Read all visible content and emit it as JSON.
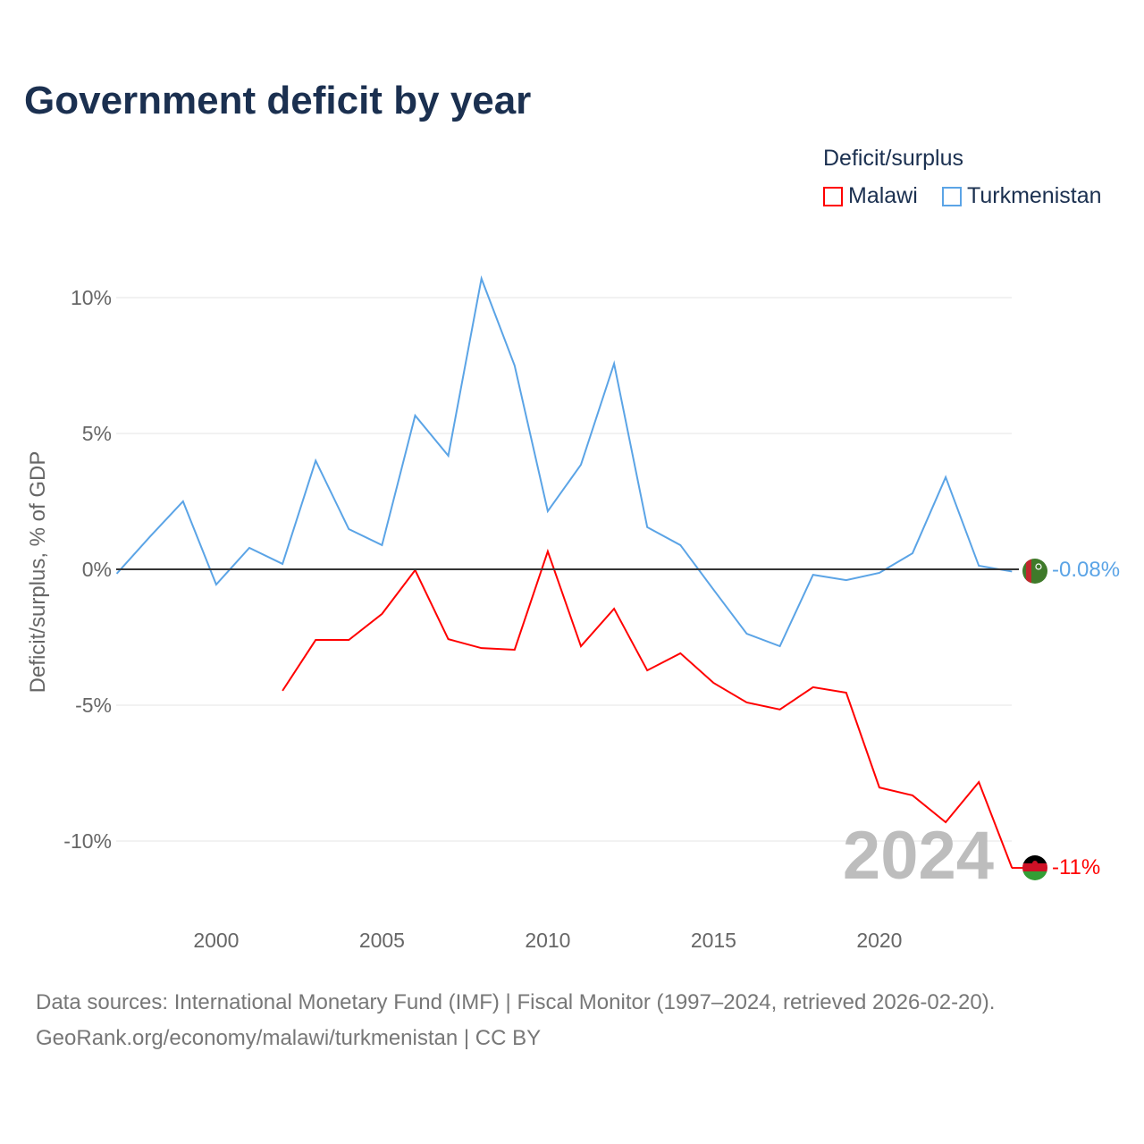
{
  "title": "Government deficit by year",
  "legend": {
    "title": "Deficit/surplus",
    "items": [
      {
        "name": "Malawi",
        "color": "#ff0000"
      },
      {
        "name": "Turkmenistan",
        "color": "#5ba4e6"
      }
    ]
  },
  "watermark_year": "2024",
  "sources": [
    "Data sources: International Monetary Fund (IMF) | Fiscal Monitor (1997–2024, retrieved 2026-02-20).",
    "GeoRank.org/economy/malawi/turkmenistan | CC BY"
  ],
  "chart_data": {
    "type": "line",
    "title": "Government deficit by year",
    "xlabel": "",
    "ylabel": "Deficit/surplus, % of GDP",
    "xlim": [
      1997,
      2024
    ],
    "yticks": [
      {
        "v": 10,
        "label": "10%"
      },
      {
        "v": 5,
        "label": "5%"
      },
      {
        "v": 0,
        "label": "0%"
      },
      {
        "v": -5,
        "label": "-5%"
      },
      {
        "v": -10,
        "label": "-10%"
      }
    ],
    "xticks": [
      2000,
      2005,
      2010,
      2015,
      2020
    ],
    "grid": true,
    "legend_position": "top-right",
    "series": [
      {
        "name": "Turkmenistan",
        "color": "#5ba4e6",
        "end_label": "-0.08%",
        "x": [
          1997,
          1998,
          1999,
          2000,
          2001,
          2002,
          2003,
          2004,
          2005,
          2006,
          2007,
          2008,
          2009,
          2010,
          2011,
          2012,
          2013,
          2014,
          2015,
          2016,
          2017,
          2018,
          2019,
          2020,
          2021,
          2022,
          2023,
          2024
        ],
        "values": [
          -0.16,
          1.2,
          2.5,
          -0.56,
          0.79,
          0.2,
          4.0,
          1.48,
          0.89,
          5.66,
          4.18,
          10.7,
          7.5,
          2.14,
          3.85,
          7.57,
          1.55,
          0.89,
          -0.75,
          -2.37,
          -2.83,
          -0.2,
          -0.4,
          -0.13,
          0.59,
          3.39,
          0.13,
          -0.08
        ]
      },
      {
        "name": "Malawi",
        "color": "#ff0000",
        "end_label": "-11%",
        "x": [
          2002,
          2003,
          2004,
          2005,
          2006,
          2007,
          2008,
          2009,
          2010,
          2011,
          2012,
          2013,
          2014,
          2015,
          2016,
          2017,
          2018,
          2019,
          2020,
          2021,
          2022,
          2023,
          2024
        ],
        "values": [
          -4.47,
          -2.6,
          -2.6,
          -1.64,
          -0.03,
          -2.57,
          -2.9,
          -2.96,
          0.66,
          -2.83,
          -1.45,
          -3.72,
          -3.09,
          -4.18,
          -4.9,
          -5.16,
          -4.34,
          -4.54,
          -8.03,
          -8.32,
          -9.31,
          -7.83,
          -10.99
        ]
      }
    ]
  }
}
